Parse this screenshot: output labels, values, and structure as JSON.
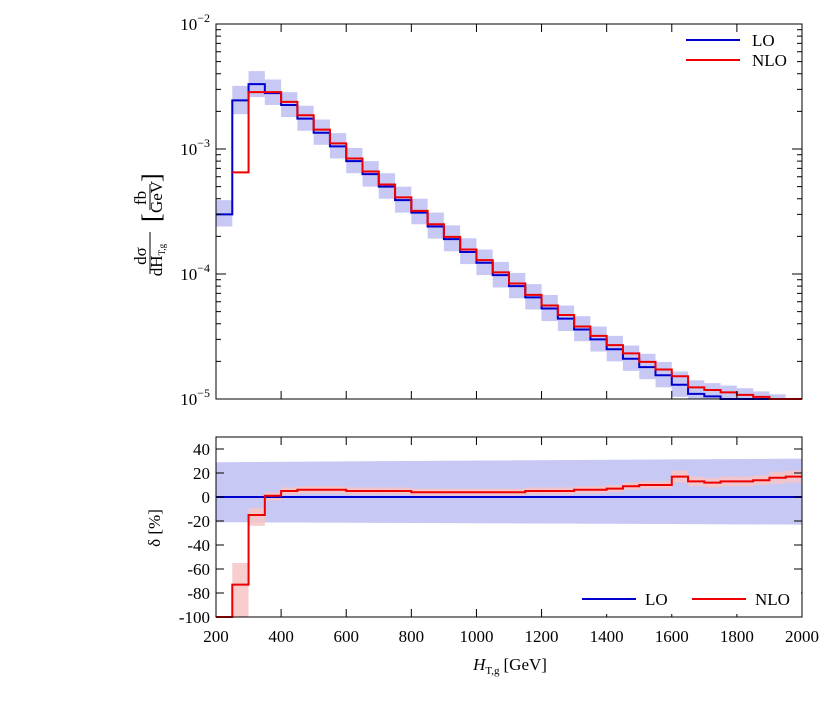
{
  "chart_data": [
    {
      "type": "line",
      "panel": "main",
      "ylabel_num": "dσ",
      "ylabel_den": "dH",
      "ylabel_den_sub": "T,g",
      "ylabel_unit_num": "fb",
      "ylabel_unit_den": "GeV",
      "ylim": [
        1e-05,
        0.01
      ],
      "yscale": "log",
      "xlim": [
        200,
        2000
      ],
      "ytick_labels": [
        {
          "base": "10",
          "exp": "−2",
          "value": 0.01
        },
        {
          "base": "10",
          "exp": "−3",
          "value": 0.001
        },
        {
          "base": "10",
          "exp": "−4",
          "value": 0.0001
        },
        {
          "base": "10",
          "exp": "−5",
          "value": 1e-05
        }
      ],
      "bin_edges": [
        200,
        250,
        300,
        350,
        400,
        450,
        500,
        550,
        600,
        650,
        700,
        750,
        800,
        850,
        900,
        950,
        1000,
        1050,
        1100,
        1150,
        1200,
        1250,
        1300,
        1350,
        1400,
        1450,
        1500,
        1550,
        1600,
        1650,
        1700,
        1750,
        1800,
        1850,
        1900,
        1950,
        2000
      ],
      "series": [
        {
          "name": "LO",
          "color": "#0000cc",
          "values": [
            0.0003,
            0.00245,
            0.0033,
            0.0028,
            0.00225,
            0.00175,
            0.00135,
            0.00105,
            0.0008,
            0.00063,
            0.0005,
            0.00039,
            0.00031,
            0.00024,
            0.00019,
            0.00015,
            0.000123,
            9.8e-05,
            8e-05,
            6.5e-05,
            5.3e-05,
            4.4e-05,
            3.6e-05,
            3e-05,
            2.5e-05,
            2.1e-05,
            1.8e-05,
            1.55e-05,
            1.3e-05,
            1.1e-05,
            1.05e-05,
            1e-05,
            9.5e-06,
            9e-06,
            8.5e-06,
            8e-06
          ],
          "band_low": [
            0.00024,
            0.0019,
            0.0026,
            0.00225,
            0.0018,
            0.0014,
            0.00108,
            0.00084,
            0.00064,
            0.0005,
            0.0004,
            0.00031,
            0.00025,
            0.000192,
            0.000152,
            0.00012,
            9.8e-05,
            7.8e-05,
            6.4e-05,
            5.2e-05,
            4.2e-05,
            3.5e-05,
            2.9e-05,
            2.4e-05,
            2e-05,
            1.68e-05,
            1.44e-05,
            1.24e-05,
            1.04e-05,
            8.8e-06,
            8.4e-06,
            8e-06,
            7.6e-06,
            7.2e-06,
            6.8e-06,
            6.4e-06
          ],
          "band_high": [
            0.00039,
            0.0032,
            0.0042,
            0.0036,
            0.00285,
            0.00222,
            0.00172,
            0.00134,
            0.00102,
            0.0008,
            0.00064,
            0.0005,
            0.0004,
            0.00031,
            0.000245,
            0.000193,
            0.000157,
            0.000125,
            0.000102,
            8.3e-05,
            6.8e-05,
            5.6e-05,
            4.6e-05,
            3.8e-05,
            3.2e-05,
            2.68e-05,
            2.3e-05,
            1.98e-05,
            1.66e-05,
            1.41e-05,
            1.34e-05,
            1.28e-05,
            1.22e-05,
            1.15e-05,
            1.09e-05,
            1.02e-05
          ]
        },
        {
          "name": "NLO",
          "color": "#ee0000",
          "values": [
            null,
            0.00065,
            0.00285,
            0.00285,
            0.00238,
            0.00186,
            0.00143,
            0.00111,
            0.00084,
            0.00066,
            0.00052,
            0.00041,
            0.00032,
            0.00025,
            0.000198,
            0.000157,
            0.000129,
            0.000103,
            8.4e-05,
            6.8e-05,
            5.6e-05,
            4.7e-05,
            3.8e-05,
            3.2e-05,
            2.7e-05,
            2.32e-05,
            1.98e-05,
            1.72e-05,
            1.52e-05,
            1.24e-05,
            1.18e-05,
            1.13e-05,
            1.08e-05,
            1.04e-05,
            1e-05,
            9.4e-06
          ]
        }
      ],
      "legend": {
        "position": "top-right",
        "entries": [
          "LO",
          "NLO"
        ]
      }
    },
    {
      "type": "line",
      "panel": "ratio",
      "xlabel_main": "H",
      "xlabel_sub": "T,g",
      "xlabel_unit": "[GeV]",
      "ylabel": "δ [%]",
      "ylim": [
        -100,
        50
      ],
      "xlim": [
        200,
        2000
      ],
      "xticks": [
        200,
        400,
        600,
        800,
        1000,
        1200,
        1400,
        1600,
        1800,
        2000
      ],
      "yticks": [
        -100,
        -80,
        -60,
        -40,
        -20,
        0,
        20,
        40
      ],
      "bin_edges": [
        200,
        250,
        300,
        350,
        400,
        450,
        500,
        550,
        600,
        650,
        700,
        750,
        800,
        850,
        900,
        950,
        1000,
        1050,
        1100,
        1150,
        1200,
        1250,
        1300,
        1350,
        1400,
        1450,
        1500,
        1550,
        1600,
        1650,
        1700,
        1750,
        1800,
        1850,
        1900,
        1950,
        2000
      ],
      "series": [
        {
          "name": "LO",
          "color": "#0000cc",
          "constant": 0,
          "band_low_ends": [
            -21,
            -23
          ],
          "band_high_ends": [
            29,
            32
          ]
        },
        {
          "name": "NLO",
          "color": "#ee0000",
          "values": [
            -100,
            -73,
            -15,
            1,
            5,
            6,
            6,
            6,
            5,
            5,
            5,
            5,
            4,
            4,
            4,
            4,
            4,
            4,
            4,
            5,
            5,
            5,
            6,
            6,
            7,
            9,
            10,
            10,
            17,
            13,
            12,
            13,
            13,
            14,
            16,
            17
          ],
          "band_low": [
            -100,
            -100,
            -24,
            -3,
            2,
            3,
            3,
            3,
            2,
            2,
            2,
            2,
            1,
            1,
            1,
            1,
            1,
            1,
            1,
            2,
            2,
            2,
            3,
            3,
            4,
            6,
            7,
            7,
            12,
            9,
            8,
            9,
            9,
            10,
            11,
            12
          ],
          "band_high": [
            -100,
            -55,
            -9,
            4,
            8,
            9,
            9,
            9,
            8,
            8,
            8,
            8,
            7,
            7,
            7,
            7,
            7,
            7,
            7,
            8,
            8,
            8,
            9,
            9,
            10,
            12,
            13,
            13,
            22,
            17,
            16,
            17,
            17,
            18,
            21,
            22
          ]
        }
      ],
      "legend": {
        "position": "bottom-right",
        "entries": [
          "LO",
          "NLO"
        ]
      }
    }
  ]
}
